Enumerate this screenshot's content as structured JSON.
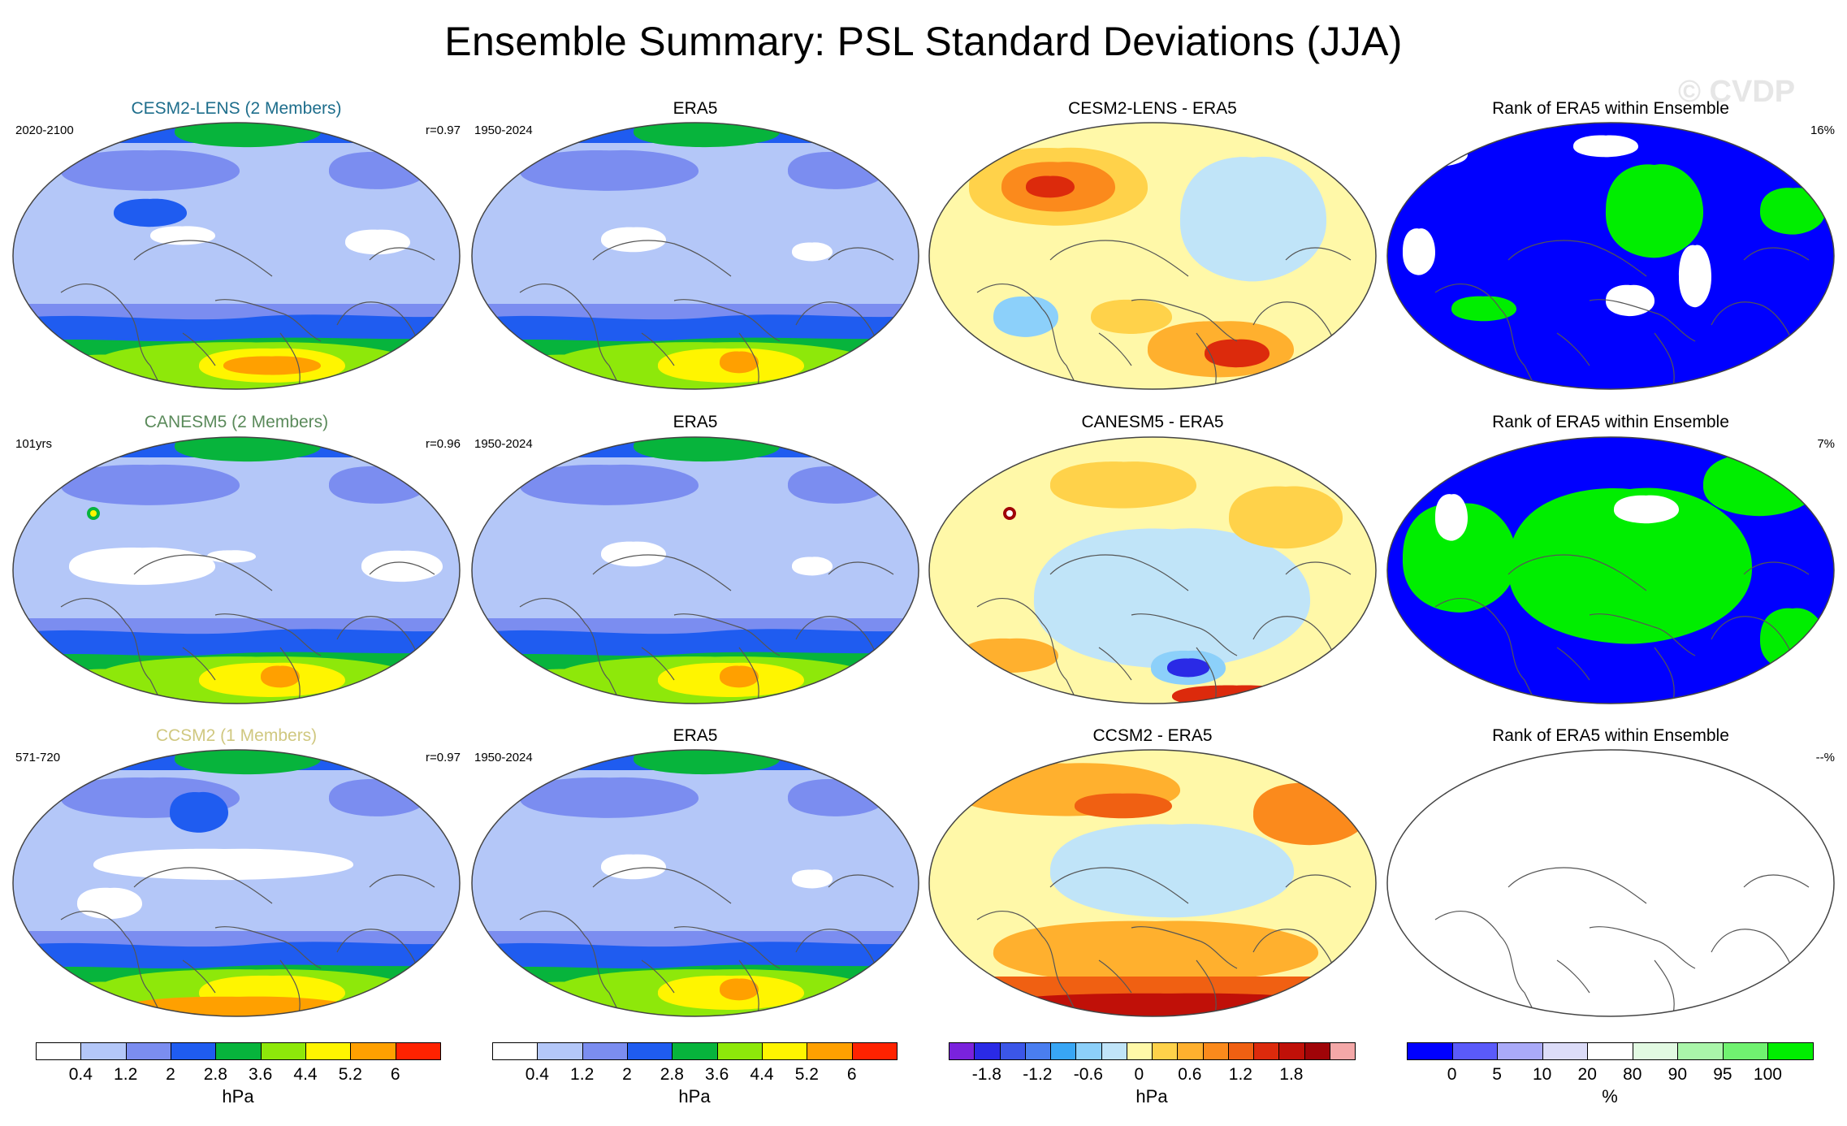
{
  "title": "Ensemble Summary: PSL Standard Deviations (JJA)",
  "watermark": "© CVDP",
  "colors": {
    "std": [
      "#ffffff",
      "#b4c7f8",
      "#7b8df0",
      "#1f5cf0",
      "#07b43c",
      "#8ee80a",
      "#fff500",
      "#ffa000",
      "#ff2200"
    ],
    "diff": [
      "#7a22dc",
      "#2a2ae6",
      "#3b56e8",
      "#4a7ef0",
      "#38a6f5",
      "#8cd0fa",
      "#c0e4f8",
      "#fff8a8",
      "#ffd24a",
      "#ffb02e",
      "#fb8a1c",
      "#f06012",
      "#dc2a0c",
      "#c01008",
      "#a00408",
      "#f4a8a8"
    ],
    "rank": [
      "#0000ff",
      "#5a5afa",
      "#aaaaf8",
      "#dcdcf8",
      "#ffffff",
      "#e2fae2",
      "#aaf6aa",
      "#70f270",
      "#00ee00"
    ]
  },
  "rows": [
    {
      "model": {
        "title": "CESM2-LENS (2 Members)",
        "title_color": "#1e6e8c",
        "left": "2020-2100",
        "right": "r=0.97"
      },
      "obs": {
        "title": "ERA5",
        "left": "1950-2024"
      },
      "diff": {
        "title": "CESM2-LENS - ERA5"
      },
      "rank": {
        "title": "Rank of ERA5 within Ensemble",
        "right": "16%"
      }
    },
    {
      "model": {
        "title": "CANESM5 (2 Members)",
        "title_color": "#5a8a5a",
        "left": "101yrs",
        "right": "r=0.96"
      },
      "obs": {
        "title": "ERA5",
        "left": "1950-2024"
      },
      "diff": {
        "title": "CANESM5 - ERA5"
      },
      "rank": {
        "title": "Rank of ERA5 within Ensemble",
        "right": "7%"
      }
    },
    {
      "model": {
        "title": "CCSM2 (1 Members)",
        "title_color": "#d0c880",
        "left": "571-720",
        "right": "r=0.97"
      },
      "obs": {
        "title": "ERA5",
        "left": "1950-2024"
      },
      "diff": {
        "title": "CCSM2 - ERA5"
      },
      "rank": {
        "title": "Rank of ERA5 within Ensemble",
        "right": "--%"
      }
    }
  ],
  "colorbars": {
    "std1": {
      "ticks": [
        "0.4",
        "1.2",
        "2",
        "2.8",
        "3.6",
        "4.4",
        "5.2",
        "6"
      ],
      "unit": "hPa"
    },
    "std2": {
      "ticks": [
        "0.4",
        "1.2",
        "2",
        "2.8",
        "3.6",
        "4.4",
        "5.2",
        "6"
      ],
      "unit": "hPa"
    },
    "diff": {
      "ticks": [
        "-1.8",
        "-1.2",
        "-0.6",
        "0",
        "0.6",
        "1.2",
        "1.8"
      ],
      "unit": "hPa"
    },
    "rank": {
      "ticks": [
        "0",
        "5",
        "10",
        "20",
        "80",
        "90",
        "95",
        "100"
      ],
      "unit": "%"
    }
  }
}
